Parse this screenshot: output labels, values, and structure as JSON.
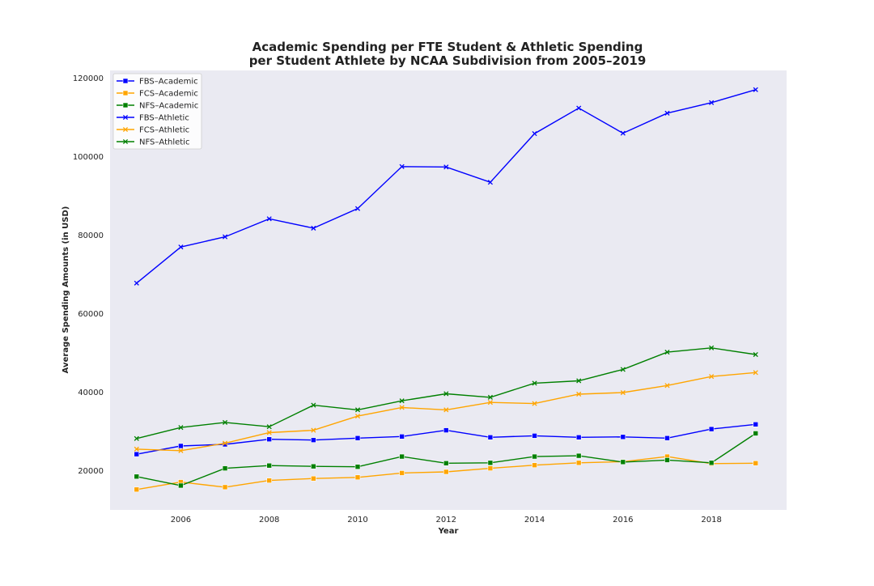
{
  "chart_data": {
    "type": "line",
    "title_line1": "Academic Spending per FTE Student & Athletic Spending",
    "title_line2": "per Student Athlete by NCAA Subdivision from 2005–2019",
    "xlabel": "Year",
    "ylabel": "Average Spending Amounts (in USD)",
    "xlim": [
      2004.4,
      2019.7
    ],
    "ylim": [
      10000,
      122000
    ],
    "x_ticks": [
      2006,
      2008,
      2010,
      2012,
      2014,
      2016,
      2018
    ],
    "y_ticks": [
      20000,
      40000,
      60000,
      80000,
      100000,
      120000
    ],
    "grid": false,
    "legend_position": "top-left",
    "x": [
      2005,
      2006,
      2007,
      2008,
      2009,
      2010,
      2011,
      2012,
      2013,
      2014,
      2015,
      2016,
      2017,
      2018,
      2019
    ],
    "series": [
      {
        "name": "FBS–Academic",
        "color": "#0000ff",
        "marker": "square",
        "values": [
          24200,
          26300,
          26700,
          28000,
          27800,
          28300,
          28700,
          30300,
          28500,
          28900,
          28500,
          28600,
          28300,
          30600,
          31800
        ]
      },
      {
        "name": "FCS–Academic",
        "color": "#ffa500",
        "marker": "square",
        "values": [
          15200,
          17100,
          15800,
          17500,
          18000,
          18300,
          19400,
          19700,
          20600,
          21400,
          22000,
          22300,
          23600,
          21800,
          21900
        ]
      },
      {
        "name": "NFS–Academic",
        "color": "#008000",
        "marker": "square",
        "values": [
          18500,
          16200,
          20600,
          21300,
          21100,
          21000,
          23600,
          21900,
          22000,
          23600,
          23800,
          22200,
          22700,
          22000,
          29500
        ]
      },
      {
        "name": "FBS–Athletic",
        "color": "#0000ff",
        "marker": "x",
        "values": [
          67800,
          77000,
          79600,
          84200,
          81800,
          86800,
          97500,
          97400,
          93500,
          105900,
          112400,
          106000,
          111100,
          113800,
          117100
        ]
      },
      {
        "name": "FCS–Athletic",
        "color": "#ffa500",
        "marker": "x",
        "values": [
          25500,
          25100,
          27000,
          29700,
          30300,
          33900,
          36100,
          35500,
          37400,
          37100,
          39500,
          39900,
          41700,
          44000,
          45000
        ]
      },
      {
        "name": "NFS–Athletic",
        "color": "#008000",
        "marker": "x",
        "values": [
          28200,
          31000,
          32300,
          31200,
          36700,
          35500,
          37800,
          39600,
          38700,
          42300,
          42900,
          45800,
          50200,
          51300,
          49600
        ]
      }
    ]
  },
  "colors": {
    "plot_background": "#eaeaf2",
    "page_background": "#ffffff",
    "legend_background": "#ffffff"
  }
}
